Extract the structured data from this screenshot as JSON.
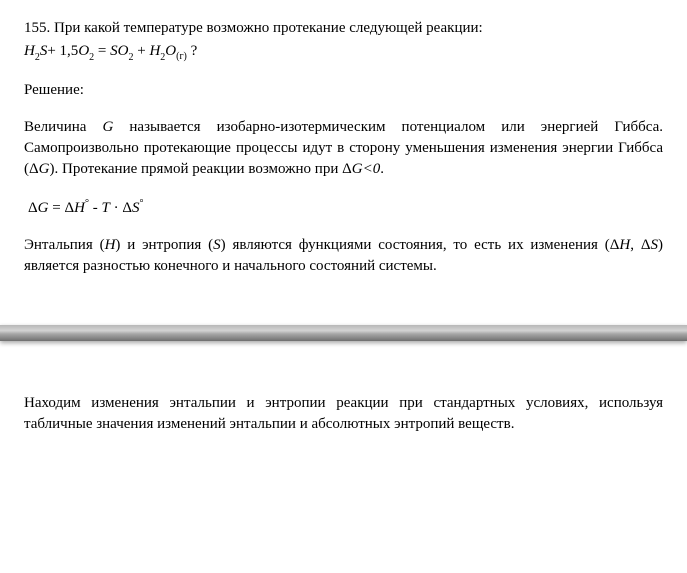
{
  "colors": {
    "background": "#ffffff",
    "text": "#000000",
    "shadow_light": "#d3d3d3",
    "shadow_dark": "#6f6f6f"
  },
  "typography": {
    "body_font": "Times New Roman",
    "body_size_pt": 11,
    "line_height": 1.4
  },
  "problem": {
    "number_and_text": "155. При какой температуре возможно протекание следующей реакции:",
    "equation": {
      "h2s": "H",
      "h2s_sub": "2",
      "s": "S",
      "plus1": "+ 1,5",
      "o2": "O",
      "o2_sub": "2",
      "eq": " = ",
      "so2": "SO",
      "so2_sub": "2",
      "plus2": " + ",
      "h2o_h": "H",
      "h2o_sub1": "2",
      "h2o_o": "O",
      "gas": "(г)",
      "question": " ?"
    }
  },
  "solution_label": "Решение:",
  "para1_part1": "Величина ",
  "para1_G": "G",
  "para1_part2": " называется изобарно-изотермическим потенциалом или энергией Гиббса. Самопроизвольно протекающие процессы идут в сторону уменьшения изменения энергии Гиббса (Δ",
  "para1_G2": "G",
  "para1_part3": "). Протекание прямой реакции возможно при Δ",
  "para1_G3": "G<0",
  "para1_part4": ".",
  "formula": {
    "dG": "ΔG",
    "eq": " = ",
    "dH": "ΔH",
    "deg1": "°",
    "minus": " - ",
    "T": "T",
    "dot": " · ",
    "dS": "ΔS",
    "deg2": "°"
  },
  "para2_part1": "Энтальпия (",
  "para2_H": "H",
  "para2_part2": ") и энтропия (",
  "para2_S": "S",
  "para2_part3": ") являются функциями состояния, то есть их изменения (Δ",
  "para2_H2": "H",
  "para2_comma": ", Δ",
  "para2_S2": "S",
  "para2_part4": ") является разностью конечного и начального состояний системы.",
  "para3": "Находим изменения энтальпии и энтропии реакции при стандартных условиях, используя табличные значения изменений энтальпии и абсолютных энтропий веществ."
}
